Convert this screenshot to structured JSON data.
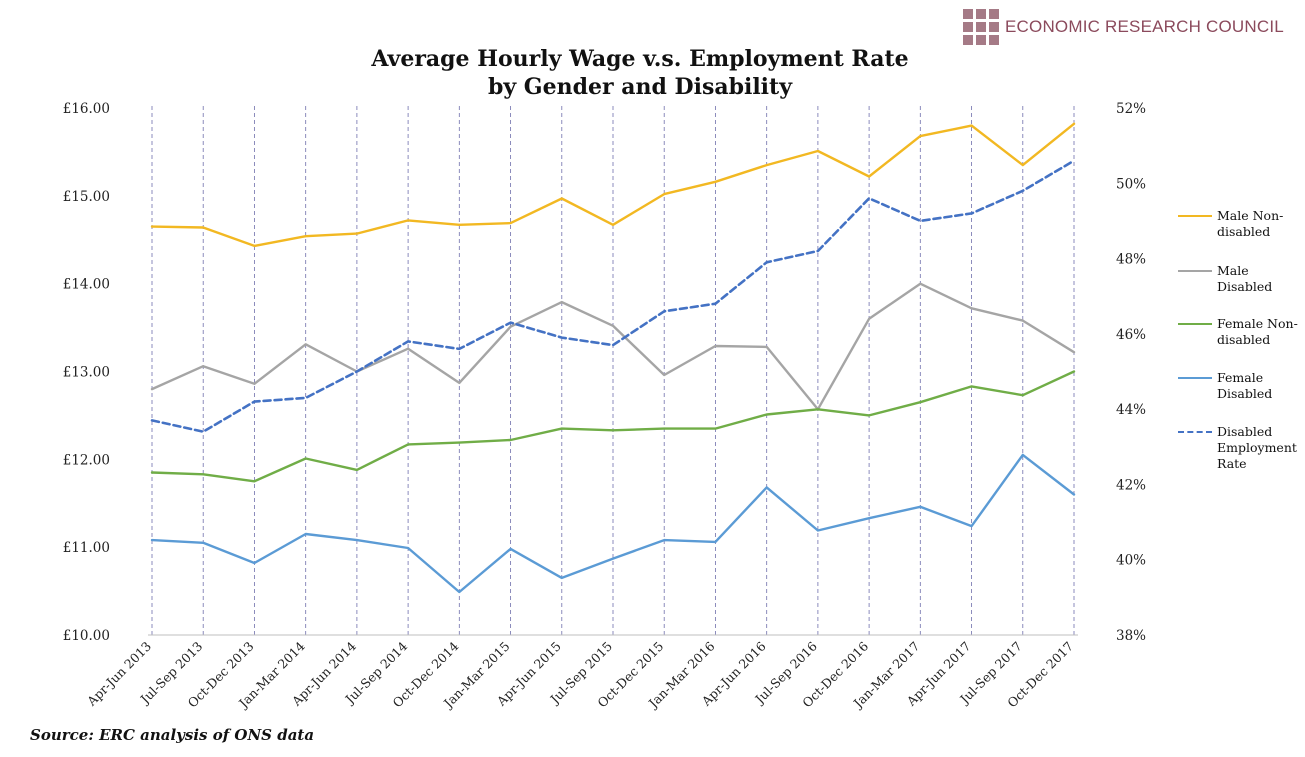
{
  "brand": {
    "name": "ECONOMIC RESEARCH COUNCIL",
    "logo_icon": "brand-squares-icon",
    "color": "#8b4a5c"
  },
  "title_line1": "Average Hourly Wage v.s. Employment Rate",
  "title_line2": "by Gender and Disability",
  "source": "Source: ERC analysis of ONS data",
  "chart_data": {
    "type": "line",
    "title": "Average Hourly Wage v.s. Employment Rate by Gender and Disability",
    "categories": [
      "Apr-Jun 2013",
      "Jul-Sep 2013",
      "Oct-Dec 2013",
      "Jan-Mar 2014",
      "Apr-Jun 2014",
      "Jul-Sep 2014",
      "Oct-Dec 2014",
      "Jan-Mar 2015",
      "Apr-Jun 2015",
      "Jul-Sep 2015",
      "Oct-Dec 2015",
      "Jan-Mar 2016",
      "Apr-Jun 2016",
      "Jul-Sep 2016",
      "Oct-Dec 2016",
      "Jan-Mar 2017",
      "Apr-Jun 2017",
      "Jul-Sep 2017",
      "Oct-Dec 2017"
    ],
    "y_left": {
      "min": 10,
      "max": 16,
      "ticks": [
        10,
        11,
        12,
        13,
        14,
        15,
        16
      ],
      "tick_labels": [
        "£10.00",
        "£11.00",
        "£12.00",
        "£13.00",
        "£14.00",
        "£15.00",
        "£16.00"
      ]
    },
    "y_right": {
      "min": 38,
      "max": 52,
      "ticks": [
        38,
        40,
        42,
        44,
        46,
        48,
        50,
        52
      ],
      "tick_labels": [
        "38%",
        "40%",
        "42%",
        "44%",
        "46%",
        "48%",
        "50%",
        "52%"
      ]
    },
    "grid": "vertical dashed",
    "legend_position": "right",
    "series": [
      {
        "name": "Male Non-disabled",
        "axis": "left",
        "color": "#f2b822",
        "dash": false,
        "values": [
          14.65,
          14.64,
          14.43,
          14.54,
          14.57,
          14.72,
          14.67,
          14.69,
          14.97,
          14.67,
          15.02,
          15.16,
          15.35,
          15.51,
          15.22,
          15.68,
          15.8,
          15.35,
          15.82
        ]
      },
      {
        "name": "Male Disabled",
        "axis": "left",
        "color": "#a5a5a5",
        "dash": false,
        "values": [
          12.8,
          13.06,
          12.86,
          13.31,
          13.0,
          13.26,
          12.87,
          13.51,
          13.79,
          13.52,
          12.96,
          13.29,
          13.28,
          12.57,
          13.6,
          14.0,
          13.72,
          13.58,
          13.22
        ]
      },
      {
        "name": "Female Non-disabled",
        "axis": "left",
        "color": "#70ad47",
        "dash": false,
        "values": [
          11.85,
          11.83,
          11.75,
          12.01,
          11.88,
          12.17,
          12.19,
          12.22,
          12.35,
          12.33,
          12.35,
          12.35,
          12.51,
          12.57,
          12.5,
          12.65,
          12.83,
          12.73,
          13.0
        ]
      },
      {
        "name": "Female Disabled",
        "axis": "left",
        "color": "#5b9bd5",
        "dash": false,
        "values": [
          11.08,
          11.05,
          10.82,
          11.15,
          11.08,
          10.99,
          10.49,
          10.98,
          10.65,
          10.87,
          11.08,
          11.06,
          11.68,
          11.19,
          11.33,
          11.46,
          11.24,
          12.05,
          11.6
        ]
      },
      {
        "name": "Disabled Employment Rate",
        "axis": "right",
        "color": "#4472c4",
        "dash": true,
        "values": [
          43.7,
          43.4,
          44.2,
          44.3,
          45.0,
          45.8,
          45.6,
          46.3,
          45.9,
          45.7,
          46.6,
          46.8,
          47.9,
          48.2,
          49.6,
          49.0,
          49.2,
          49.8,
          50.6
        ]
      }
    ]
  },
  "legend": [
    {
      "line1": "Male Non-",
      "line2": "disabled"
    },
    {
      "line1": "Male",
      "line2": "Disabled"
    },
    {
      "line1": "Female Non-",
      "line2": "disabled"
    },
    {
      "line1": "Female",
      "line2": "Disabled"
    },
    {
      "line1": "Disabled",
      "line2": "Employment",
      "line3": "Rate"
    }
  ]
}
